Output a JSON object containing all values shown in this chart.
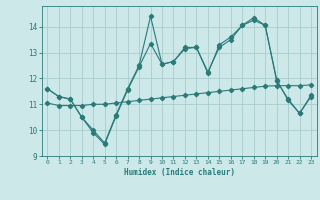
{
  "title": "",
  "xlabel": "Humidex (Indice chaleur)",
  "bg_color": "#cce8e8",
  "grid_color": "#aacccc",
  "line_color": "#2a7a7a",
  "xlim": [
    -0.5,
    23.5
  ],
  "ylim": [
    9,
    14.8
  ],
  "yticks": [
    9,
    10,
    11,
    12,
    13,
    14
  ],
  "xticks": [
    0,
    1,
    2,
    3,
    4,
    5,
    6,
    7,
    8,
    9,
    10,
    11,
    12,
    13,
    14,
    15,
    16,
    17,
    18,
    19,
    20,
    21,
    22,
    23
  ],
  "series1_x": [
    0,
    1,
    2,
    3,
    4,
    5,
    6,
    7,
    8,
    9,
    10,
    11,
    12,
    13,
    14,
    15,
    16,
    17,
    18,
    19,
    20,
    21,
    22,
    23
  ],
  "series1_y": [
    11.6,
    11.3,
    11.2,
    10.5,
    10.0,
    9.5,
    10.6,
    11.6,
    12.5,
    14.4,
    12.55,
    12.65,
    13.2,
    13.2,
    12.2,
    13.3,
    13.6,
    14.05,
    14.35,
    14.05,
    11.9,
    11.2,
    10.65,
    11.35
  ],
  "series2_x": [
    0,
    1,
    2,
    3,
    4,
    5,
    6,
    7,
    8,
    9,
    10,
    11,
    12,
    13,
    14,
    15,
    16,
    17,
    18,
    19,
    20,
    21,
    22,
    23
  ],
  "series2_y": [
    11.05,
    10.95,
    10.95,
    10.95,
    11.0,
    11.0,
    11.05,
    11.1,
    11.15,
    11.2,
    11.25,
    11.3,
    11.35,
    11.4,
    11.45,
    11.5,
    11.55,
    11.6,
    11.65,
    11.7,
    11.72,
    11.72,
    11.72,
    11.75
  ],
  "series3_x": [
    0,
    1,
    2,
    3,
    4,
    5,
    6,
    7,
    8,
    9,
    10,
    11,
    12,
    13,
    14,
    15,
    16,
    17,
    18,
    19,
    20,
    21,
    22,
    23
  ],
  "series3_y": [
    11.6,
    11.3,
    11.2,
    10.5,
    9.9,
    9.45,
    10.55,
    11.55,
    12.45,
    13.35,
    12.55,
    12.65,
    13.15,
    13.2,
    12.25,
    13.2,
    13.5,
    14.05,
    14.25,
    14.05,
    11.95,
    11.15,
    10.65,
    11.3
  ]
}
